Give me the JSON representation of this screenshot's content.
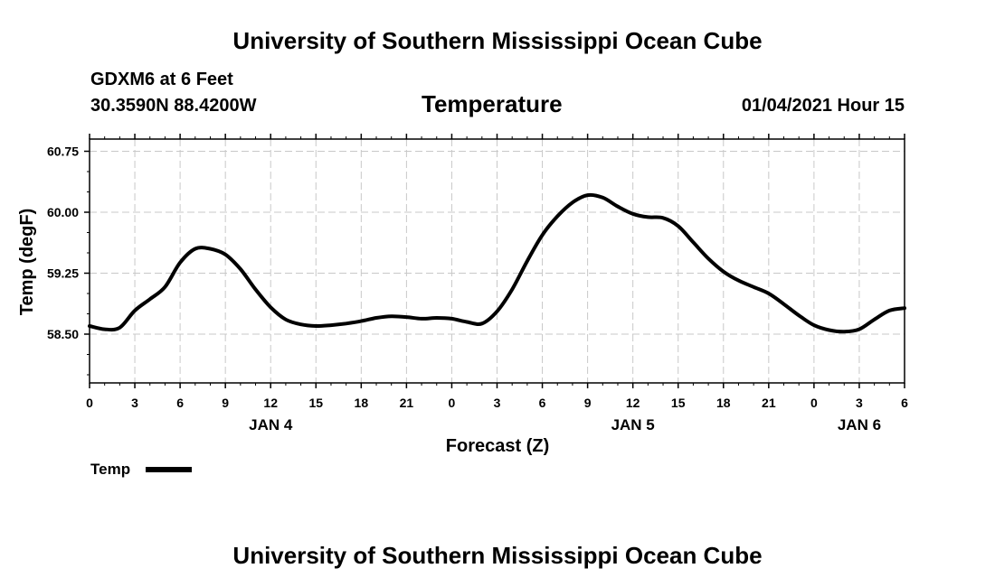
{
  "header": {
    "top_title": "University of Southern Mississippi Ocean Cube",
    "station": "GDXM6 at 6 Feet",
    "coords": "30.3590N 88.4200W",
    "plot_title": "Temperature",
    "datetime": "01/04/2021 Hour 15",
    "bottom_title": "University of Southern Mississippi Ocean Cube"
  },
  "chart_data": {
    "type": "line",
    "title": "Temperature",
    "xlabel": "Forecast (Z)",
    "ylabel": "Temp (degF)",
    "grid": true,
    "legend_placement": "bottom-left",
    "x_unit": "hour",
    "xlim": [
      0,
      54
    ],
    "ylim": [
      57.9,
      60.9
    ],
    "x_tick_values": [
      0,
      3,
      6,
      9,
      12,
      15,
      18,
      21,
      24,
      27,
      30,
      33,
      36,
      39,
      42,
      45,
      48,
      51,
      54
    ],
    "x_tick_labels": [
      "0",
      "3",
      "6",
      "9",
      "12",
      "15",
      "18",
      "21",
      "0",
      "3",
      "6",
      "9",
      "12",
      "15",
      "18",
      "21",
      "0",
      "3",
      "6"
    ],
    "date_labels": [
      {
        "x": 12,
        "label": "JAN 4"
      },
      {
        "x": 36,
        "label": "JAN 5"
      },
      {
        "x": 51,
        "label": "JAN 6"
      }
    ],
    "y_ticks": [
      58.5,
      59.25,
      60.0,
      60.75
    ],
    "y_tick_labels": [
      "58.50",
      "59.25",
      "60.00",
      "60.75"
    ],
    "series": [
      {
        "name": "Temp",
        "color": "#000000",
        "x": [
          0,
          1,
          2,
          3,
          4,
          5,
          6,
          7,
          8,
          9,
          10,
          11,
          12,
          13,
          14,
          15,
          16,
          17,
          18,
          19,
          20,
          21,
          22,
          23,
          24,
          25,
          26,
          27,
          28,
          29,
          30,
          31,
          32,
          33,
          34,
          35,
          36,
          37,
          38,
          39,
          40,
          41,
          42,
          43,
          44,
          45,
          46,
          47,
          48,
          49,
          50,
          51,
          52,
          53,
          54
        ],
        "y": [
          58.6,
          58.56,
          58.58,
          58.79,
          58.93,
          59.08,
          59.38,
          59.55,
          59.55,
          59.48,
          59.3,
          59.05,
          58.83,
          58.68,
          58.62,
          58.6,
          58.61,
          58.63,
          58.66,
          58.7,
          58.72,
          58.71,
          58.69,
          58.7,
          58.69,
          58.65,
          58.63,
          58.78,
          59.05,
          59.4,
          59.72,
          59.95,
          60.12,
          60.21,
          60.18,
          60.07,
          59.98,
          59.94,
          59.93,
          59.83,
          59.63,
          59.43,
          59.27,
          59.16,
          59.08,
          59.0,
          58.87,
          58.73,
          58.61,
          58.55,
          58.53,
          58.56,
          58.68,
          58.79,
          58.82
        ]
      }
    ]
  }
}
